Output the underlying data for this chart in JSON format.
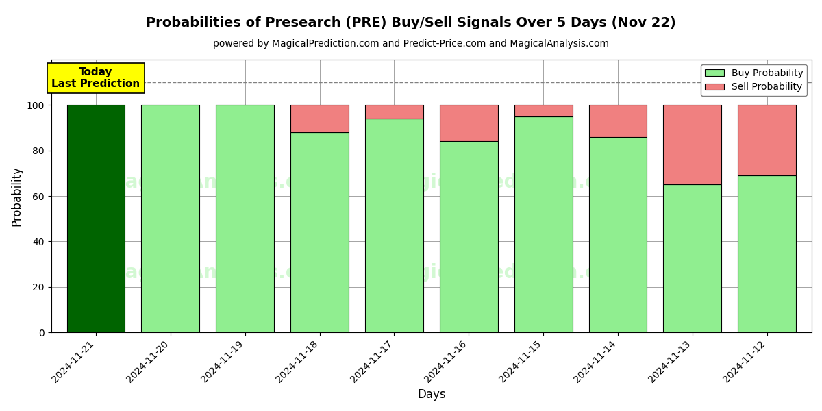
{
  "title": "Probabilities of Presearch (PRE) Buy/Sell Signals Over 5 Days (Nov 22)",
  "subtitle": "powered by MagicalPrediction.com and Predict-Price.com and MagicalAnalysis.com",
  "xlabel": "Days",
  "ylabel": "Probability",
  "dates": [
    "2024-11-21",
    "2024-11-20",
    "2024-11-19",
    "2024-11-18",
    "2024-11-17",
    "2024-11-16",
    "2024-11-15",
    "2024-11-14",
    "2024-11-13",
    "2024-11-12"
  ],
  "buy_probs": [
    100,
    100,
    100,
    88,
    94,
    84,
    95,
    86,
    65,
    69
  ],
  "sell_probs": [
    0,
    0,
    0,
    12,
    6,
    16,
    5,
    14,
    35,
    31
  ],
  "today_color": "#006400",
  "buy_color": "#90EE90",
  "sell_color": "#F08080",
  "today_label_bg": "#FFFF00",
  "ylim": [
    0,
    120
  ],
  "yticks": [
    0,
    20,
    40,
    60,
    80,
    100
  ],
  "dashed_line_y": 110,
  "watermark_color": "#90EE90",
  "watermark_alpha": 0.4
}
